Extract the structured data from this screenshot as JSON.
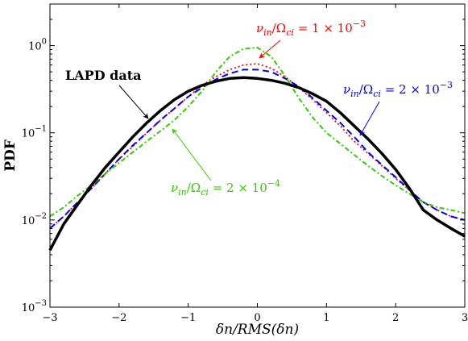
{
  "chart_data": {
    "type": "line",
    "xlabel": "δn/RMS(δn)",
    "ylabel": "PDF",
    "xlim": [
      -3,
      3
    ],
    "ylim": [
      0.001,
      3
    ],
    "yscale": "log",
    "xticks": [
      -3,
      -2,
      -1,
      0,
      1,
      2,
      3
    ],
    "xtick_labels": [
      "−3",
      "−2",
      "−1",
      "0",
      "1",
      "2",
      "3"
    ],
    "yticks": [
      0.001,
      0.01,
      0.1,
      1
    ],
    "ytick_labels": [
      {
        "base": "10",
        "exp": "−3"
      },
      {
        "base": "10",
        "exp": "−2"
      },
      {
        "base": "10",
        "exp": "−1"
      },
      {
        "base": "10",
        "exp": "0"
      }
    ],
    "grid": false,
    "series": [
      {
        "name": "LAPD data",
        "color": "#000000",
        "style": "solid",
        "x": [
          -3.0,
          -2.8,
          -2.6,
          -2.4,
          -2.2,
          -2.0,
          -1.8,
          -1.6,
          -1.4,
          -1.2,
          -1.0,
          -0.8,
          -0.6,
          -0.4,
          -0.2,
          0.0,
          0.2,
          0.4,
          0.6,
          0.8,
          1.0,
          1.2,
          1.4,
          1.6,
          1.8,
          2.0,
          2.2,
          2.4,
          2.6,
          2.8,
          3.0
        ],
        "y": [
          0.0045,
          0.009,
          0.015,
          0.025,
          0.04,
          0.06,
          0.09,
          0.13,
          0.18,
          0.24,
          0.3,
          0.35,
          0.39,
          0.42,
          0.43,
          0.42,
          0.4,
          0.37,
          0.33,
          0.28,
          0.23,
          0.17,
          0.12,
          0.085,
          0.058,
          0.038,
          0.023,
          0.013,
          0.01,
          0.008,
          0.0065
        ]
      },
      {
        "name": "ν_in/Ω_ci = 1 × 10^−3",
        "color": "#ff0000",
        "style": "dotted",
        "x": [
          -3.0,
          -2.8,
          -2.6,
          -2.4,
          -2.2,
          -2.0,
          -1.8,
          -1.6,
          -1.4,
          -1.2,
          -1.0,
          -0.8,
          -0.6,
          -0.4,
          -0.2,
          0.0,
          0.2,
          0.4,
          0.6,
          0.8,
          1.0,
          1.2,
          1.4,
          1.6,
          1.8,
          2.0,
          2.2,
          2.4,
          2.6,
          2.8,
          3.0
        ],
        "y": [
          0.008,
          0.011,
          0.016,
          0.023,
          0.034,
          0.05,
          0.07,
          0.1,
          0.14,
          0.19,
          0.26,
          0.35,
          0.44,
          0.53,
          0.6,
          0.62,
          0.55,
          0.44,
          0.33,
          0.24,
          0.17,
          0.12,
          0.08,
          0.058,
          0.042,
          0.03,
          0.022,
          0.016,
          0.013,
          0.011,
          0.01
        ]
      },
      {
        "name": "ν_in/Ω_ci = 2 × 10^−3",
        "color": "#0000ff",
        "style": "dashed",
        "x": [
          -3.0,
          -2.8,
          -2.6,
          -2.4,
          -2.2,
          -2.0,
          -1.8,
          -1.6,
          -1.4,
          -1.2,
          -1.0,
          -0.8,
          -0.6,
          -0.4,
          -0.2,
          0.0,
          0.2,
          0.4,
          0.6,
          0.8,
          1.0,
          1.2,
          1.4,
          1.6,
          1.8,
          2.0,
          2.2,
          2.4,
          2.6,
          2.8,
          3.0
        ],
        "y": [
          0.008,
          0.011,
          0.016,
          0.023,
          0.034,
          0.05,
          0.072,
          0.1,
          0.14,
          0.19,
          0.26,
          0.33,
          0.41,
          0.48,
          0.53,
          0.53,
          0.5,
          0.42,
          0.34,
          0.25,
          0.18,
          0.13,
          0.09,
          0.06,
          0.043,
          0.031,
          0.022,
          0.016,
          0.013,
          0.011,
          0.01
        ]
      },
      {
        "name": "ν_in/Ω_ci = 2 × 10^−4",
        "color": "#33cc00",
        "style": "dashdot",
        "x": [
          -3.0,
          -2.8,
          -2.6,
          -2.4,
          -2.2,
          -2.0,
          -1.8,
          -1.6,
          -1.4,
          -1.2,
          -1.0,
          -0.8,
          -0.6,
          -0.4,
          -0.2,
          0.0,
          0.2,
          0.4,
          0.6,
          0.8,
          1.0,
          1.2,
          1.4,
          1.6,
          1.8,
          2.0,
          2.2,
          2.4,
          2.6,
          2.8,
          3.0
        ],
        "y": [
          0.011,
          0.014,
          0.019,
          0.025,
          0.034,
          0.045,
          0.06,
          0.08,
          0.105,
          0.14,
          0.2,
          0.3,
          0.5,
          0.75,
          0.92,
          0.95,
          0.75,
          0.45,
          0.25,
          0.15,
          0.1,
          0.075,
          0.056,
          0.042,
          0.032,
          0.025,
          0.02,
          0.016,
          0.014,
          0.013,
          0.012
        ]
      }
    ],
    "annotations": [
      {
        "id": "lapd",
        "text": "LAPD data",
        "color": "#000000"
      },
      {
        "id": "red",
        "prefix": "ν",
        "sub1": "in",
        "mid": "/Ω",
        "sub2": "ci",
        "eq": " = 1 × 10",
        "exp": "−3",
        "color": "#ff0000"
      },
      {
        "id": "blue",
        "prefix": "ν",
        "sub1": "in",
        "mid": "/Ω",
        "sub2": "ci",
        "eq": " = 2 × 10",
        "exp": "−3",
        "color": "#0000ff"
      },
      {
        "id": "green",
        "prefix": "ν",
        "sub1": "in",
        "mid": "/Ω",
        "sub2": "ci",
        "eq": " = 2 × 10",
        "exp": "−4",
        "color": "#33cc00"
      }
    ]
  }
}
